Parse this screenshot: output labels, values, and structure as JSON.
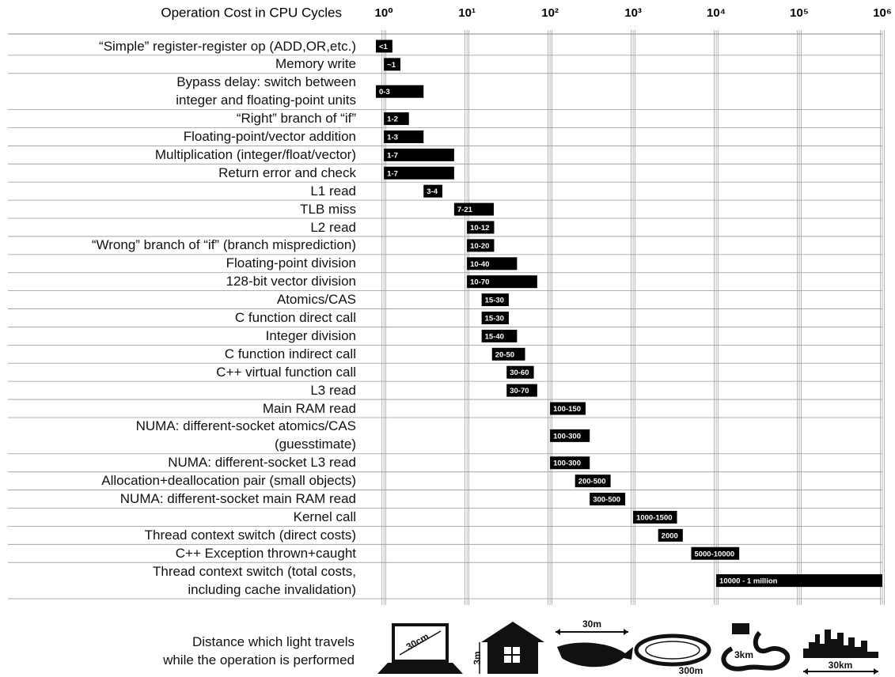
{
  "chart_data": {
    "type": "range-bar",
    "title": "Operation  Cost in CPU Cycles",
    "log_x": true,
    "grid": true,
    "color": "#000000",
    "xlim": [
      0.8,
      1000000
    ],
    "xticks": [
      {
        "value": 1,
        "label": "10⁰"
      },
      {
        "value": 10,
        "label": "10¹"
      },
      {
        "value": 100,
        "label": "10²"
      },
      {
        "value": 1000,
        "label": "10³"
      },
      {
        "value": 10000,
        "label": "10⁴"
      },
      {
        "value": 100000,
        "label": "10⁵"
      },
      {
        "value": 1000000,
        "label": "10⁶"
      }
    ],
    "categories": [
      "“Simple” register-register op (ADD,OR,etc.)",
      "Memory write",
      "Bypass delay: switch between\ninteger and floating-point units",
      "“Right” branch of “if”",
      "Floating-point/vector addition",
      "Multiplication (integer/float/vector)",
      "Return error and check",
      "L1 read",
      "TLB miss",
      "L2 read",
      "“Wrong” branch of “if” (branch misprediction)",
      "Floating-point division",
      "128-bit vector division",
      "Atomics/CAS",
      "C function direct call",
      "Integer division",
      "C function indirect call",
      "C++ virtual function call",
      "L3 read",
      "Main RAM read",
      "NUMA: different-socket atomics/CAS\n(guesstimate)",
      "NUMA: different-socket L3 read",
      "Allocation+deallocation pair (small objects)",
      "NUMA: different-socket main RAM read",
      "Kernel call",
      "Thread context switch (direct costs)",
      "C++ Exception thrown+caught",
      "Thread context switch (total costs,\nincluding cache invalidation)"
    ],
    "low": [
      0,
      1,
      0,
      1,
      1,
      1,
      1,
      3,
      7,
      10,
      10,
      10,
      10,
      15,
      15,
      15,
      20,
      30,
      30,
      100,
      100,
      100,
      200,
      300,
      1000,
      2000,
      5000,
      10000
    ],
    "high": [
      1,
      1,
      3,
      2,
      3,
      7,
      7,
      4,
      21,
      12,
      20,
      40,
      70,
      30,
      30,
      40,
      50,
      60,
      70,
      150,
      300,
      300,
      500,
      500,
      1500,
      2000,
      10000,
      1000000
    ],
    "value_labels": [
      "<1",
      "~1",
      "0-3",
      "1-2",
      "1-3",
      "1-7",
      "1-7",
      "3-4",
      "7-21",
      "10-12",
      "10-20",
      "10-40",
      "10-70",
      "15-30",
      "15-30",
      "15-40",
      "20-50",
      "30-60",
      "30-70",
      "100-150",
      "100-300",
      "100-300",
      "200-500",
      "300-500",
      "1000-1500",
      "2000",
      "5000-10000",
      "10000 - 1 million"
    ]
  },
  "footer": {
    "caption": "Distance which light travels\nwhile the operation is performed",
    "distances": [
      "30cm",
      "3m",
      "30m",
      "300m",
      "3km",
      "30km"
    ]
  }
}
